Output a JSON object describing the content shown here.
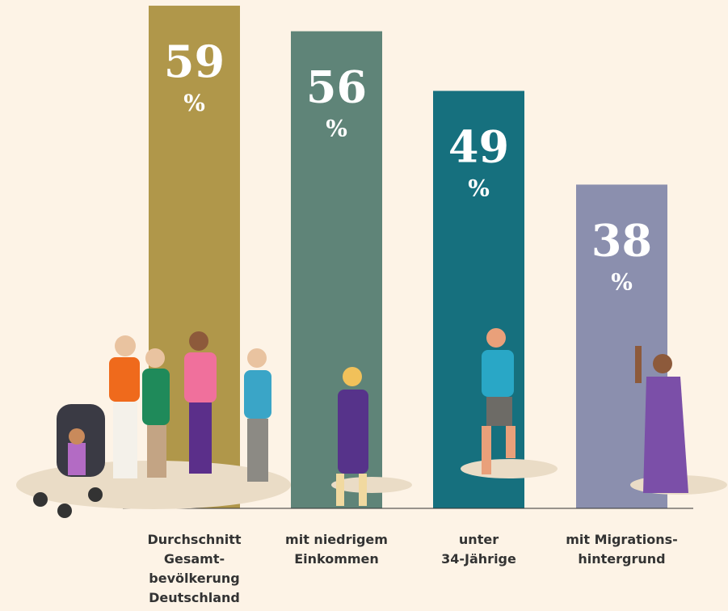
{
  "chart_data": {
    "type": "bar",
    "categories": [
      "Durchschnitt\nGesamt-\nbevölkerung\nDeutschland",
      "mit niedrigem\nEinkommen",
      "unter\n34-Jährige",
      "mit Migrations-\nhintergrund"
    ],
    "values": [
      59,
      56,
      49,
      38
    ],
    "unit": "%",
    "colors": [
      "#b0974a",
      "#5f8478",
      "#16707e",
      "#8b8fae"
    ],
    "ylim": [
      0,
      60
    ]
  }
}
